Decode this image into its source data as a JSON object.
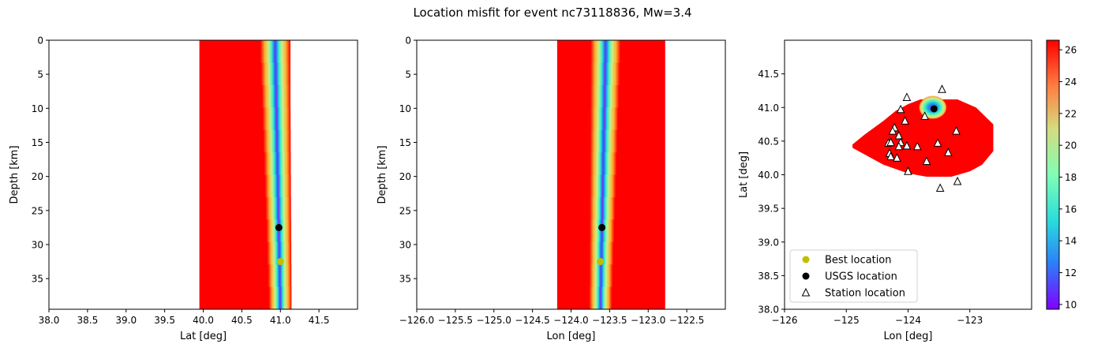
{
  "figure": {
    "title": "Location misfit for event nc73118836, Mw=3.4"
  },
  "chart_data": [
    {
      "type": "heatmap",
      "xlabel": "Lat [deg]",
      "ylabel": "Depth [km]",
      "xlim": [
        38.0,
        42.0
      ],
      "ylim": [
        39.5,
        0
      ],
      "xticks": [
        38.0,
        38.5,
        39.0,
        39.5,
        40.0,
        40.5,
        41.0,
        41.5
      ],
      "xtick_labels": [
        "38.0",
        "38.5",
        "39.0",
        "39.5",
        "40.0",
        "40.5",
        "41.0",
        "41.5"
      ],
      "yticks": [
        0,
        5,
        10,
        15,
        20,
        25,
        30,
        35
      ],
      "ytick_labels": [
        "0",
        "5",
        "10",
        "15",
        "20",
        "25",
        "30",
        "35"
      ],
      "field_extent_x": [
        39.95,
        41.13
      ],
      "valley_center_x": [
        40.93,
        41.0
      ],
      "usgs_location": {
        "x": 40.98,
        "y": 27.5
      },
      "best_location": {
        "x": 41.0,
        "y": 32.5
      }
    },
    {
      "type": "heatmap",
      "xlabel": "Lon [deg]",
      "ylabel": "Depth [km]",
      "xlim": [
        -126.0,
        -122.0
      ],
      "ylim": [
        39.5,
        0
      ],
      "xticks": [
        -126.0,
        -125.5,
        -125.0,
        -124.5,
        -124.0,
        -123.5,
        -123.0,
        -122.5
      ],
      "xtick_labels": [
        "−126.0",
        "−125.5",
        "−125.0",
        "−124.5",
        "−124.0",
        "−123.5",
        "−123.0",
        "−122.5"
      ],
      "yticks": [
        0,
        5,
        10,
        15,
        20,
        25,
        30,
        35
      ],
      "ytick_labels": [
        "0",
        "5",
        "10",
        "15",
        "20",
        "25",
        "30",
        "35"
      ],
      "field_extent_x": [
        -124.18,
        -122.78
      ],
      "valley_center_x": [
        -123.55,
        -123.62
      ],
      "usgs_location": {
        "x": -123.6,
        "y": 27.5
      },
      "best_location": {
        "x": -123.62,
        "y": 32.5
      }
    },
    {
      "type": "heatmap",
      "xlabel": "Lon [deg]",
      "ylabel": "Lat [deg]",
      "xlim": [
        -126.0,
        -122.0
      ],
      "ylim": [
        38.0,
        42.0
      ],
      "xticks": [
        -126,
        -125,
        -124,
        -123
      ],
      "xtick_labels": [
        "−126",
        "−125",
        "−124",
        "−123"
      ],
      "yticks": [
        38.0,
        38.5,
        39.0,
        39.5,
        40.0,
        40.5,
        41.0,
        41.5
      ],
      "ytick_labels": [
        "38.0",
        "38.5",
        "39.0",
        "39.5",
        "40.0",
        "40.5",
        "41.0",
        "41.5"
      ],
      "field_polygon": [
        [
          -124.9,
          40.45
        ],
        [
          -124.7,
          40.6
        ],
        [
          -124.4,
          40.8
        ],
        [
          -124.2,
          40.95
        ],
        [
          -124.0,
          41.05
        ],
        [
          -123.8,
          41.12
        ],
        [
          -123.2,
          41.12
        ],
        [
          -122.9,
          41.0
        ],
        [
          -122.62,
          40.75
        ],
        [
          -122.62,
          40.35
        ],
        [
          -122.8,
          40.15
        ],
        [
          -123.0,
          40.05
        ],
        [
          -123.3,
          39.97
        ],
        [
          -123.7,
          39.97
        ],
        [
          -124.0,
          40.02
        ],
        [
          -124.4,
          40.15
        ],
        [
          -124.9,
          40.4
        ]
      ],
      "usgs_location": {
        "x": -123.58,
        "y": 40.98
      },
      "best_location": {
        "x": -123.6,
        "y": 41.0
      },
      "stations": [
        [
          -123.45,
          41.27
        ],
        [
          -124.02,
          41.15
        ],
        [
          -124.12,
          40.97
        ],
        [
          -123.22,
          40.65
        ],
        [
          -124.22,
          40.7
        ],
        [
          -124.25,
          40.65
        ],
        [
          -124.05,
          40.8
        ],
        [
          -123.73,
          40.87
        ],
        [
          -124.15,
          40.58
        ],
        [
          -124.32,
          40.47
        ],
        [
          -124.28,
          40.48
        ],
        [
          -124.12,
          40.48
        ],
        [
          -124.15,
          40.42
        ],
        [
          -124.02,
          40.43
        ],
        [
          -123.85,
          40.42
        ],
        [
          -123.52,
          40.47
        ],
        [
          -123.35,
          40.33
        ],
        [
          -124.3,
          40.32
        ],
        [
          -124.28,
          40.27
        ],
        [
          -124.18,
          40.25
        ],
        [
          -123.7,
          40.2
        ],
        [
          -124.0,
          40.05
        ],
        [
          -123.2,
          39.9
        ],
        [
          -123.48,
          39.8
        ]
      ],
      "legend": {
        "placement": "lower-left",
        "entries": [
          {
            "label": "Best location",
            "marker": "circle",
            "color": "#bfbf00"
          },
          {
            "label": "USGS location",
            "marker": "circle",
            "color": "#000000"
          },
          {
            "label": "Station location",
            "marker": "triangle-open",
            "color": "#000000"
          }
        ]
      }
    }
  ],
  "colorbar": {
    "range": [
      9.7,
      26.6
    ],
    "ticks": [
      10,
      12,
      14,
      16,
      18,
      20,
      22,
      24,
      26
    ],
    "tick_labels": [
      "10",
      "12",
      "14",
      "16",
      "18",
      "20",
      "22",
      "24",
      "26"
    ],
    "colormap": "rainbow"
  },
  "colors": {
    "field_max": "#ff0000",
    "usgs": "#000000",
    "best": "#bfbf00"
  }
}
